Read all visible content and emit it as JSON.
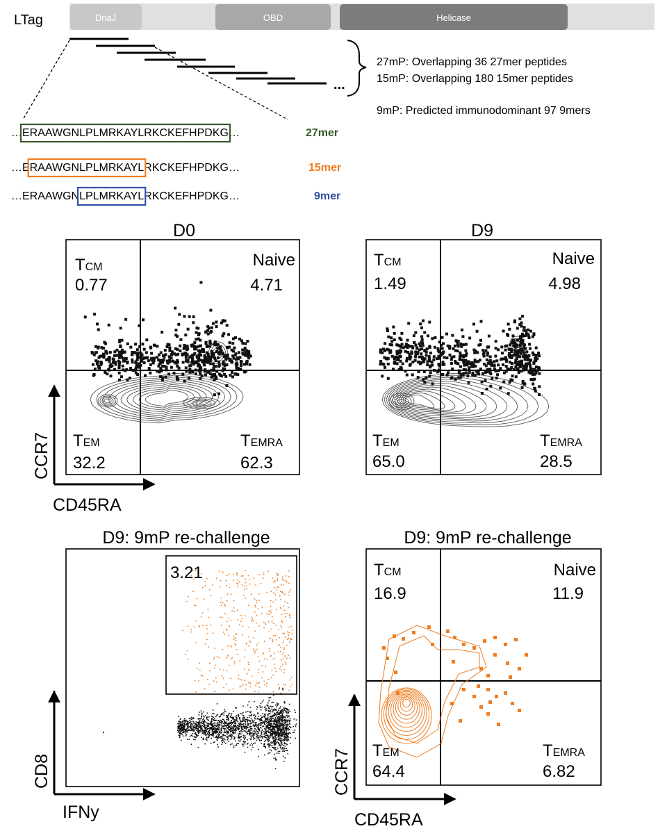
{
  "protein": {
    "label": "LTag",
    "domains": [
      "DnaJ",
      "OBD",
      "Helicase"
    ],
    "domain_colors": [
      "#c8c8c8",
      "#a8a8a8",
      "#7c7c7c"
    ],
    "track_color": "#e0e0e0"
  },
  "peptide_sets": {
    "ellipsis": "...",
    "line_27mer": "27mP: Overlapping 36 27mer peptides",
    "line_15mer": "15mP: Overlapping 180 15mer peptides",
    "line_9mer": "9mP: Predicted immunodominant 97 9mers"
  },
  "sequences": [
    {
      "before": "…",
      "boxed": "ERAAWGNLPLMRKAYLRKCKEFHPDKG",
      "after": "…",
      "tag": "27mer",
      "color": "#375a2a"
    },
    {
      "before": "…E",
      "boxed": "RAAWGNLPLMRKAYL",
      "after": "RKCKEFHPDKG…",
      "tag": "15mer",
      "color": "#ee7d22"
    },
    {
      "before": "…ERAAWGN",
      "boxed": "LPLMRKAYL",
      "after": "RKCKEFHPDKG…",
      "tag": "9mer",
      "color": "#3450a4"
    }
  ],
  "panels": {
    "d0": {
      "title": "D0",
      "quadrants": {
        "tcm_main": "T",
        "tcm_sub": "CM",
        "tcm_value": "0.77",
        "naive_label": "Naive",
        "naive_value": "4.71",
        "tem_main": "T",
        "tem_sub": "EM",
        "tem_value": "32.2",
        "temra_main": "T",
        "temra_sub": "EMRA",
        "temra_value": "62.3"
      },
      "x_axis": "CD45RA",
      "y_axis": "CCR7"
    },
    "d9": {
      "title": "D9",
      "quadrants": {
        "tcm_main": "T",
        "tcm_sub": "CM",
        "tcm_value": "1.49",
        "naive_label": "Naive",
        "naive_value": "4.98",
        "tem_main": "T",
        "tem_sub": "EM",
        "tem_value": "65.0",
        "temra_main": "T",
        "temra_sub": "EMRA",
        "temra_value": "28.5"
      }
    },
    "ifn": {
      "title": "D9: 9mP re-challenge",
      "gate_value": "3.21",
      "x_axis": "IFNy",
      "y_axis": "CD8"
    },
    "rechallenge": {
      "title": "D9: 9mP re-challenge",
      "quadrants": {
        "tcm_main": "T",
        "tcm_sub": "CM",
        "tcm_value": "16.9",
        "naive_label": "Naive",
        "naive_value": "11.9",
        "tem_main": "T",
        "tem_sub": "EM",
        "tem_value": "64.4",
        "temra_main": "T",
        "temra_sub": "EMRA",
        "temra_value": "6.82"
      },
      "x_axis": "CD45RA",
      "y_axis": "CCR7"
    }
  },
  "colors": {
    "events": "#111111",
    "contour": "#555555",
    "highlight": "#ee7d22"
  }
}
